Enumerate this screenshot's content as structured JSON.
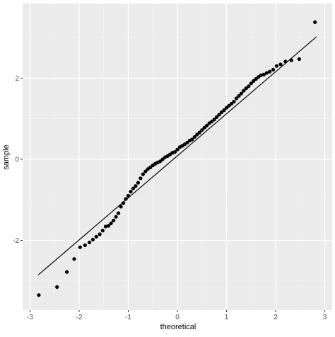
{
  "chart_data": {
    "type": "scatter",
    "title": "",
    "xlabel": "theoretical",
    "ylabel": "sample",
    "xlim": [
      -3.15,
      3.15
    ],
    "ylim": [
      -3.72,
      3.84
    ],
    "x_ticks": [
      -3,
      -2,
      -1,
      0,
      1,
      2,
      3
    ],
    "x_tick_labels": [
      "-3",
      "-2",
      "-1",
      "0",
      "1",
      "2",
      "3"
    ],
    "y_ticks": [
      -2,
      0,
      2
    ],
    "y_tick_labels": [
      "-2",
      "0",
      "2"
    ],
    "grid": true,
    "panel_background": "#ebebeb",
    "point_color": "#000000",
    "reference_line": {
      "x": [
        -2.83,
        2.83
      ],
      "y": [
        -2.85,
        3.02
      ]
    },
    "points": {
      "x": [
        -2.82,
        -2.45,
        -2.25,
        -2.1,
        -1.98,
        -1.88,
        -1.79,
        -1.72,
        -1.65,
        -1.58,
        -1.52,
        -1.46,
        -1.4,
        -1.35,
        -1.3,
        -1.25,
        -1.2,
        -1.15,
        -1.1,
        -1.05,
        -1.0,
        -0.95,
        -0.9,
        -0.85,
        -0.8,
        -0.75,
        -0.7,
        -0.65,
        -0.6,
        -0.55,
        -0.5,
        -0.45,
        -0.4,
        -0.35,
        -0.3,
        -0.25,
        -0.2,
        -0.15,
        -0.1,
        -0.05,
        0.0,
        0.05,
        0.1,
        0.15,
        0.2,
        0.25,
        0.3,
        0.35,
        0.4,
        0.45,
        0.5,
        0.55,
        0.6,
        0.65,
        0.7,
        0.75,
        0.8,
        0.85,
        0.9,
        0.95,
        1.0,
        1.05,
        1.1,
        1.15,
        1.2,
        1.25,
        1.3,
        1.35,
        1.4,
        1.45,
        1.5,
        1.55,
        1.6,
        1.65,
        1.7,
        1.76,
        1.82,
        1.88,
        1.95,
        2.02,
        2.1,
        2.2,
        2.32,
        2.48,
        2.8
      ],
      "y": [
        -3.35,
        -3.15,
        -2.78,
        -2.46,
        -2.17,
        -2.12,
        -2.05,
        -1.98,
        -1.91,
        -1.85,
        -1.76,
        -1.66,
        -1.64,
        -1.58,
        -1.51,
        -1.42,
        -1.33,
        -1.17,
        -1.08,
        -0.98,
        -0.9,
        -0.8,
        -0.72,
        -0.66,
        -0.58,
        -0.47,
        -0.37,
        -0.3,
        -0.24,
        -0.2,
        -0.15,
        -0.11,
        -0.08,
        -0.05,
        0.0,
        0.05,
        0.08,
        0.12,
        0.16,
        0.18,
        0.24,
        0.3,
        0.33,
        0.37,
        0.41,
        0.46,
        0.49,
        0.55,
        0.61,
        0.66,
        0.72,
        0.78,
        0.83,
        0.89,
        0.93,
        0.98,
        1.04,
        1.1,
        1.16,
        1.21,
        1.27,
        1.32,
        1.37,
        1.42,
        1.5,
        1.56,
        1.62,
        1.69,
        1.75,
        1.8,
        1.87,
        1.93,
        1.98,
        2.03,
        2.07,
        2.09,
        2.13,
        2.16,
        2.21,
        2.3,
        2.34,
        2.41,
        2.44,
        2.47,
        3.38
      ]
    }
  }
}
